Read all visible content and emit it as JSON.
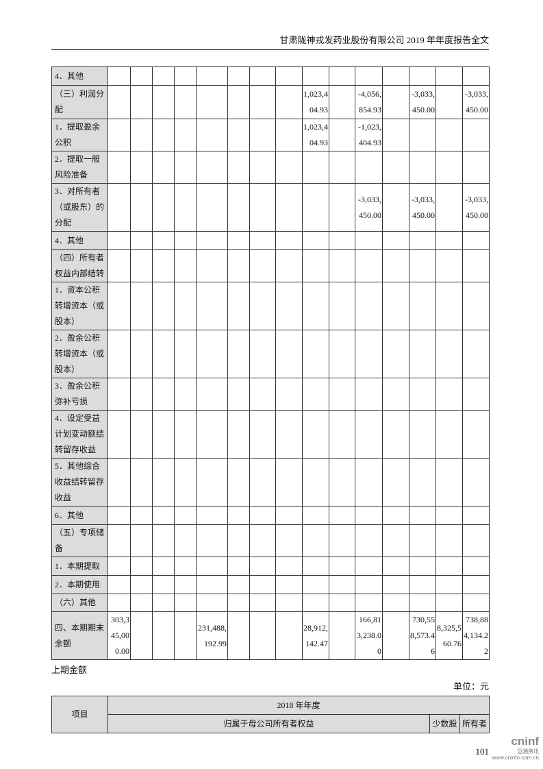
{
  "header": {
    "title": "甘肃陇神戎发药业股份有限公司 2019 年年度报告全文"
  },
  "main_table": {
    "rows": [
      {
        "label": "4．其他",
        "cells": [
          "",
          "",
          "",
          "",
          "",
          "",
          "",
          "",
          "",
          "",
          "",
          "",
          "",
          "",
          ""
        ]
      },
      {
        "label": "（三）利润分配",
        "cells": [
          "",
          "",
          "",
          "",
          "",
          "",
          "",
          "",
          "1,023,404.93",
          "",
          "-4,056,854.93",
          "",
          "-3,033,450.00",
          "",
          "-3,033,450.00"
        ]
      },
      {
        "label": "1．提取盈余公积",
        "cells": [
          "",
          "",
          "",
          "",
          "",
          "",
          "",
          "",
          "1,023,404.93",
          "",
          "-1,023,404.93",
          "",
          "",
          "",
          ""
        ]
      },
      {
        "label": "2．提取一般风险准备",
        "cells": [
          "",
          "",
          "",
          "",
          "",
          "",
          "",
          "",
          "",
          "",
          "",
          "",
          "",
          "",
          ""
        ]
      },
      {
        "label": "3．对所有者（或股东）的分配",
        "cells": [
          "",
          "",
          "",
          "",
          "",
          "",
          "",
          "",
          "",
          "",
          "-3,033,450.00",
          "",
          "-3,033,450.00",
          "",
          "-3,033,450.00"
        ]
      },
      {
        "label": "4．其他",
        "cells": [
          "",
          "",
          "",
          "",
          "",
          "",
          "",
          "",
          "",
          "",
          "",
          "",
          "",
          "",
          ""
        ]
      },
      {
        "label": "（四）所有者权益内部结转",
        "cells": [
          "",
          "",
          "",
          "",
          "",
          "",
          "",
          "",
          "",
          "",
          "",
          "",
          "",
          "",
          ""
        ]
      },
      {
        "label": "1．资本公积转增资本（或股本）",
        "cells": [
          "",
          "",
          "",
          "",
          "",
          "",
          "",
          "",
          "",
          "",
          "",
          "",
          "",
          "",
          ""
        ]
      },
      {
        "label": "2．盈余公积转增资本（或股本）",
        "cells": [
          "",
          "",
          "",
          "",
          "",
          "",
          "",
          "",
          "",
          "",
          "",
          "",
          "",
          "",
          ""
        ]
      },
      {
        "label": "3．盈余公积弥补亏损",
        "cells": [
          "",
          "",
          "",
          "",
          "",
          "",
          "",
          "",
          "",
          "",
          "",
          "",
          "",
          "",
          ""
        ]
      },
      {
        "label": "4．设定受益计划变动额结转留存收益",
        "cells": [
          "",
          "",
          "",
          "",
          "",
          "",
          "",
          "",
          "",
          "",
          "",
          "",
          "",
          "",
          ""
        ]
      },
      {
        "label": "5．其他综合收益结转留存收益",
        "cells": [
          "",
          "",
          "",
          "",
          "",
          "",
          "",
          "",
          "",
          "",
          "",
          "",
          "",
          "",
          ""
        ]
      },
      {
        "label": "6．其他",
        "cells": [
          "",
          "",
          "",
          "",
          "",
          "",
          "",
          "",
          "",
          "",
          "",
          "",
          "",
          "",
          ""
        ]
      },
      {
        "label": "（五）专项储备",
        "cells": [
          "",
          "",
          "",
          "",
          "",
          "",
          "",
          "",
          "",
          "",
          "",
          "",
          "",
          "",
          ""
        ]
      },
      {
        "label": "1．本期提取",
        "cells": [
          "",
          "",
          "",
          "",
          "",
          "",
          "",
          "",
          "",
          "",
          "",
          "",
          "",
          "",
          ""
        ]
      },
      {
        "label": "2．本期使用",
        "cells": [
          "",
          "",
          "",
          "",
          "",
          "",
          "",
          "",
          "",
          "",
          "",
          "",
          "",
          "",
          ""
        ]
      },
      {
        "label": "（六）其他",
        "cells": [
          "",
          "",
          "",
          "",
          "",
          "",
          "",
          "",
          "",
          "",
          "",
          "",
          "",
          "",
          ""
        ]
      },
      {
        "label": "四、本期期末余额",
        "cells": [
          "303,345,000.00",
          "",
          "",
          "",
          "231,488,192.99",
          "",
          "",
          "",
          "28,912,142.47",
          "",
          "166,813,238.00",
          "",
          "730,558,573.46",
          "8,325,560.76",
          "738,884,134.22"
        ]
      }
    ]
  },
  "prior_period_label": "上期金额",
  "unit_label": "单位：元",
  "sub_table": {
    "item_header": "项目",
    "year_header": "2018 年年度",
    "parent_header": "归属于母公司所有者权益",
    "minority_header": "少数股",
    "owner_header": "所有者"
  },
  "page_number": "101",
  "logo": {
    "brand": "cninf",
    "cn": "巨潮资讯",
    "url": "www.cninfo.com.cn"
  }
}
